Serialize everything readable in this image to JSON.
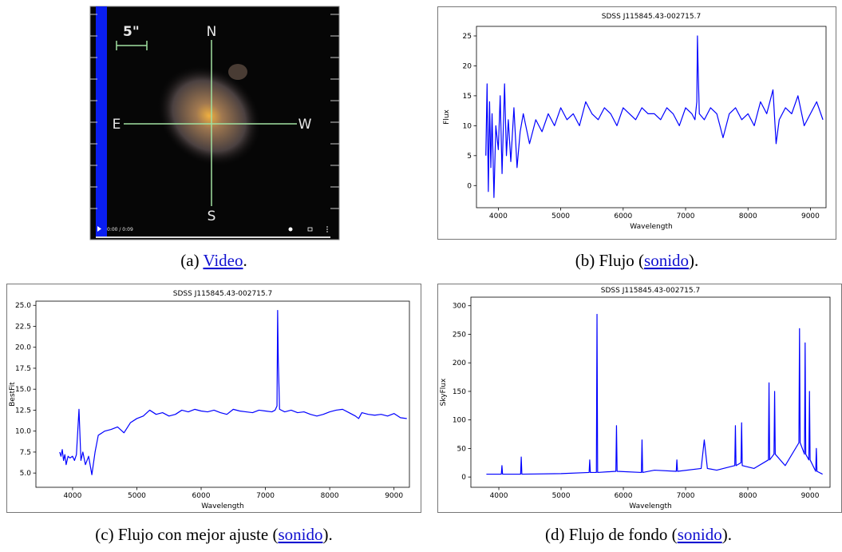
{
  "video": {
    "scale": "5\"",
    "north": "N",
    "east": "E",
    "west": "W",
    "south": "S",
    "time": "0:00 / 0:09"
  },
  "captions": [
    {
      "prefix": "(a) ",
      "link": "Video",
      "suffix": "."
    },
    {
      "prefix": "(b) Flujo (",
      "link": "sonido",
      "suffix": ")."
    },
    {
      "prefix": "(c) Flujo con mejor ajuste (",
      "link": "sonido",
      "suffix": ")."
    },
    {
      "prefix": "(d) Flujo de fondo (",
      "link": "sonido",
      "suffix": ")."
    }
  ],
  "chart_data": [
    {
      "type": "line",
      "title": "SDSS J115845.43-002715.7",
      "x_label": "Wavelength",
      "y_label": "Flux",
      "color": "#0000ff",
      "x": [
        3800,
        3820,
        3840,
        3860,
        3880,
        3900,
        3930,
        3960,
        4000,
        4030,
        4060,
        4100,
        4130,
        4160,
        4200,
        4250,
        4300,
        4350,
        4400,
        4500,
        4600,
        4700,
        4800,
        4900,
        5000,
        5100,
        5200,
        5300,
        5400,
        5500,
        5600,
        5700,
        5800,
        5900,
        6000,
        6100,
        6200,
        6300,
        6400,
        6500,
        6600,
        6700,
        6800,
        6900,
        7000,
        7100,
        7150,
        7180,
        7190,
        7200,
        7220,
        7300,
        7400,
        7500,
        7600,
        7700,
        7800,
        7900,
        8000,
        8100,
        8200,
        8300,
        8400,
        8450,
        8500,
        8600,
        8700,
        8800,
        8900,
        9000,
        9100,
        9200
      ],
      "values": [
        5,
        17,
        -1,
        14,
        3,
        12,
        -2,
        10,
        6,
        15,
        2,
        17,
        5,
        11,
        4,
        13,
        3,
        9,
        12,
        7,
        11,
        9,
        12,
        10,
        13,
        11,
        12,
        10,
        14,
        12,
        11,
        13,
        12,
        10,
        13,
        12,
        11,
        13,
        12,
        12,
        11,
        13,
        12,
        10,
        13,
        12,
        11,
        14,
        25,
        20,
        12,
        11,
        13,
        12,
        8,
        12,
        13,
        11,
        12,
        10,
        14,
        12,
        16,
        7,
        11,
        13,
        12,
        15,
        10,
        12,
        14,
        11
      ],
      "xlim": [
        3650,
        9250
      ],
      "ylim": [
        -3.7,
        26.6
      ],
      "xticks": [
        4000,
        5000,
        6000,
        7000,
        8000,
        9000
      ],
      "yticks": [
        0,
        5,
        10,
        15,
        20,
        25
      ]
    },
    {
      "type": "line",
      "title": "SDSS J115845.43-002715.7",
      "x_label": "Wavelength",
      "y_label": "BestFit",
      "color": "#0000ff",
      "x": [
        3800,
        3820,
        3840,
        3860,
        3880,
        3900,
        3930,
        3960,
        4000,
        4030,
        4060,
        4100,
        4130,
        4160,
        4200,
        4250,
        4300,
        4350,
        4400,
        4500,
        4600,
        4700,
        4800,
        4900,
        5000,
        5100,
        5200,
        5300,
        5400,
        5500,
        5600,
        5700,
        5800,
        5900,
        6000,
        6100,
        6200,
        6300,
        6400,
        6500,
        6600,
        6700,
        6800,
        6900,
        7000,
        7100,
        7150,
        7180,
        7190,
        7200,
        7220,
        7300,
        7400,
        7500,
        7600,
        7700,
        7800,
        7900,
        8000,
        8100,
        8200,
        8300,
        8400,
        8450,
        8500,
        8600,
        8700,
        8800,
        8900,
        9000,
        9100,
        9200
      ],
      "values": [
        7.5,
        7,
        7.8,
        6.5,
        7.2,
        6,
        7,
        6.8,
        7,
        6.5,
        7.2,
        12.6,
        6.5,
        7.5,
        6,
        7,
        4.8,
        7.5,
        9.5,
        10,
        10.2,
        10.5,
        9.8,
        11,
        11.5,
        11.8,
        12.5,
        12,
        12.2,
        11.8,
        12,
        12.5,
        12.3,
        12.6,
        12.4,
        12.3,
        12.5,
        12.2,
        12,
        12.6,
        12.4,
        12.3,
        12.2,
        12.5,
        12.4,
        12.3,
        12.5,
        13,
        24.4,
        18.5,
        12.6,
        12.3,
        12.5,
        12.2,
        12.3,
        12,
        11.8,
        12,
        12.3,
        12.5,
        12.6,
        12.2,
        11.8,
        11.5,
        12.2,
        12,
        11.9,
        12,
        11.8,
        12.1,
        11.6,
        11.5
      ],
      "xlim": [
        3430,
        9240
      ],
      "ylim": [
        3.3,
        25.5
      ],
      "xticks": [
        4000,
        5000,
        6000,
        7000,
        8000,
        9000
      ],
      "yticks": [
        {
          "value": 5,
          "label": "5.0"
        },
        {
          "value": 7.5,
          "label": "7.5"
        },
        {
          "value": 10,
          "label": "10.0"
        },
        {
          "value": 12.5,
          "label": "12.5"
        },
        {
          "value": 15,
          "label": "15.0"
        },
        {
          "value": 17.5,
          "label": "17.5"
        },
        {
          "value": 20,
          "label": "20.0"
        },
        {
          "value": 22.5,
          "label": "22.5"
        },
        {
          "value": 25,
          "label": "25.0"
        }
      ]
    },
    {
      "type": "line",
      "title": "SDSS J115845.43-002715.7",
      "x_label": "Wavelength",
      "y_label": "SkyFlux",
      "color": "#0000ff",
      "x": [
        3800,
        4040,
        4050,
        4060,
        4350,
        4360,
        4370,
        5000,
        5450,
        5460,
        5470,
        5567,
        5577,
        5587,
        5880,
        5890,
        5900,
        6290,
        6300,
        6310,
        6500,
        6850,
        6860,
        6870,
        7250,
        7300,
        7350,
        7500,
        7790,
        7800,
        7810,
        7890,
        7900,
        7910,
        8100,
        8330,
        8340,
        8350,
        8420,
        8430,
        8440,
        8600,
        8820,
        8830,
        8840,
        8910,
        8920,
        8930,
        8980,
        8990,
        9000,
        9090,
        9100,
        9110,
        9200
      ],
      "values": [
        5,
        5,
        20,
        5,
        5,
        35,
        5,
        6,
        8,
        30,
        8,
        8,
        285,
        8,
        10,
        90,
        10,
        8,
        65,
        8,
        12,
        10,
        30,
        10,
        15,
        65,
        15,
        12,
        20,
        90,
        20,
        25,
        95,
        20,
        15,
        30,
        165,
        30,
        40,
        150,
        40,
        20,
        60,
        260,
        60,
        40,
        235,
        40,
        30,
        150,
        30,
        10,
        50,
        10,
        5
      ],
      "xlim": [
        3551,
        9320
      ],
      "ylim": [
        -18,
        315
      ],
      "xticks": [
        4000,
        5000,
        6000,
        7000,
        8000,
        9000
      ],
      "yticks": [
        0,
        50,
        100,
        150,
        200,
        250,
        300
      ]
    }
  ]
}
